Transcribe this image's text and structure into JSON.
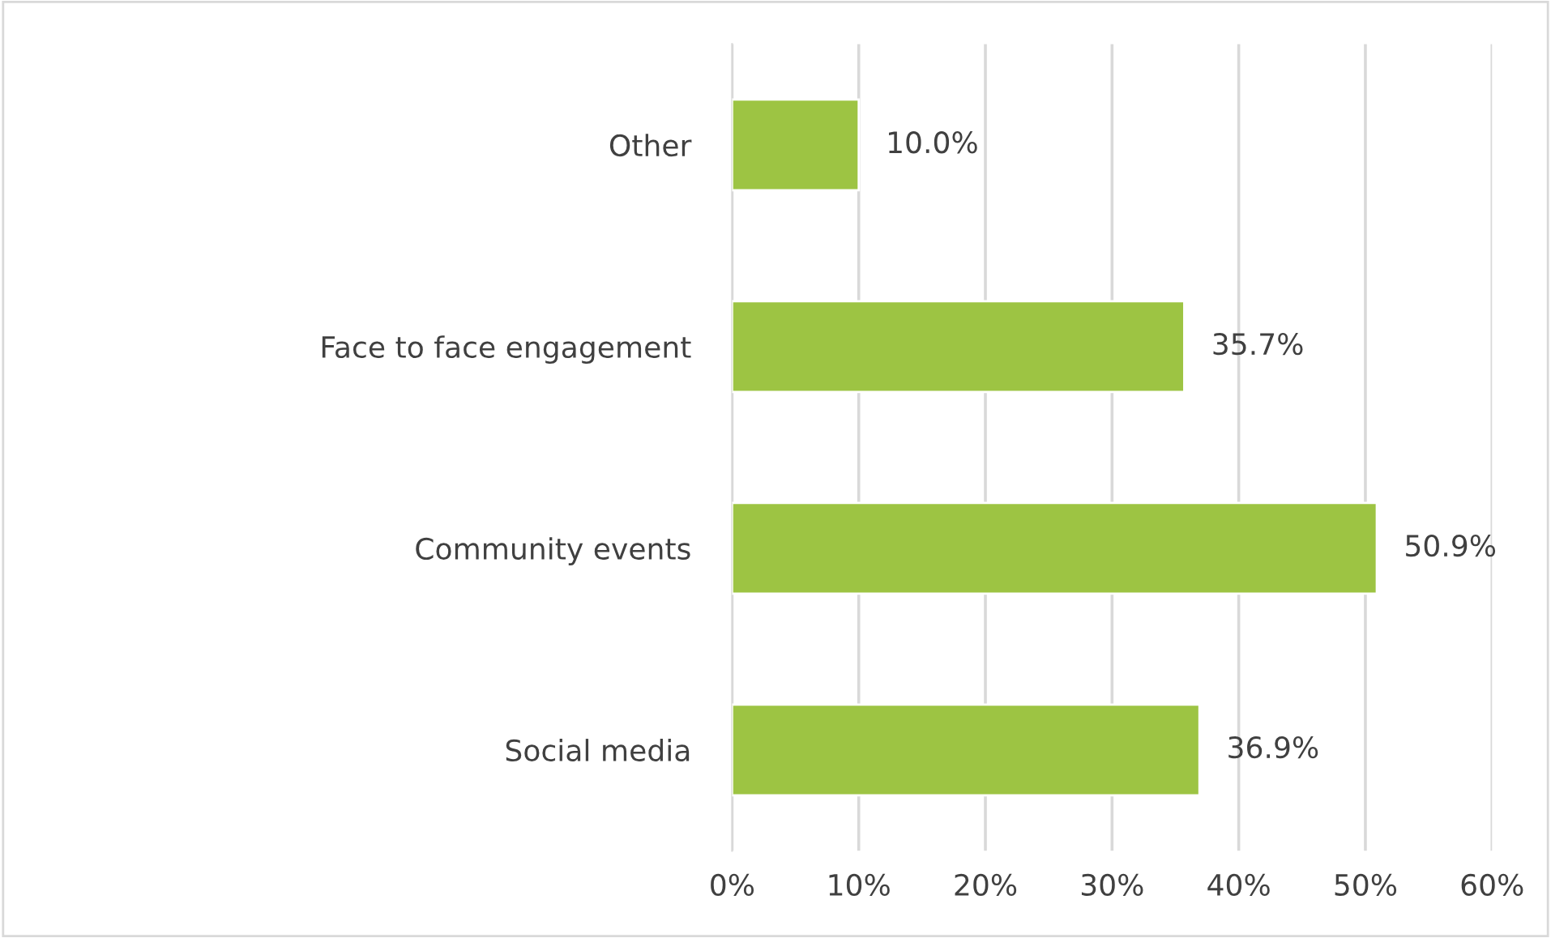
{
  "chart_data": {
    "type": "bar",
    "orientation": "horizontal",
    "categories": [
      "Other",
      "Face to face engagement",
      "Community events",
      "Social media"
    ],
    "values": [
      10.0,
      35.7,
      50.9,
      36.9
    ],
    "value_labels": [
      "10.0%",
      "35.7%",
      "50.9%",
      "36.9%"
    ],
    "color": "#9dc443",
    "xlim": [
      0,
      60
    ],
    "xticks": [
      {
        "value": 0,
        "label": "0%"
      },
      {
        "value": 10,
        "label": "10%"
      },
      {
        "value": 20,
        "label": "20%"
      },
      {
        "value": 30,
        "label": "30%"
      },
      {
        "value": 40,
        "label": "40%"
      },
      {
        "value": 50,
        "label": "50%"
      },
      {
        "value": 60,
        "label": "60%"
      }
    ],
    "grid": "x"
  }
}
